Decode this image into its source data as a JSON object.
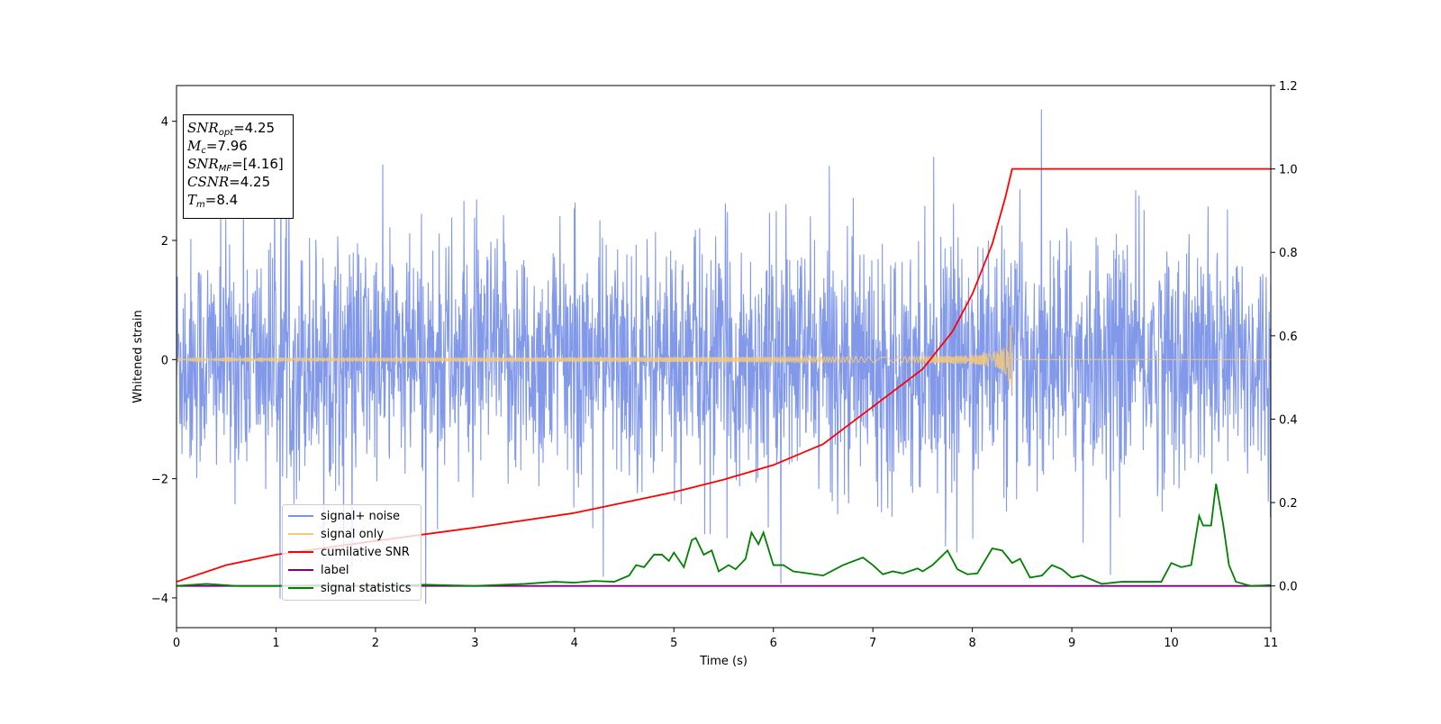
{
  "chart_data": {
    "type": "line",
    "xlabel": "Time (s)",
    "ylabel": "Whitened strain",
    "xlim": [
      0,
      11
    ],
    "ylim": [
      -4.5,
      4.6
    ],
    "y2lim": [
      -0.1,
      1.2
    ],
    "x_ticks": [
      0,
      1,
      2,
      3,
      4,
      5,
      6,
      7,
      8,
      9,
      10,
      11
    ],
    "y_ticks": [
      -4,
      -2,
      0,
      2,
      4
    ],
    "y2_ticks": [
      0.0,
      0.2,
      0.4,
      0.6,
      0.8,
      1.0,
      1.2
    ],
    "legend_position": "lower-left",
    "grid": false,
    "annotation": {
      "snr_opt": "4.25",
      "mc": "7.96",
      "snr_mf": "[4.16]",
      "csnr": "4.25",
      "tm": "8.4"
    },
    "series": [
      {
        "name": "signal+ noise",
        "color": "#7b94e8",
        "axis": "left",
        "description": "noise with std ~1, spikes up to about +/-4.2"
      },
      {
        "name": "signal only",
        "color": "#f5c97a",
        "axis": "left",
        "chirp_end": 8.4,
        "peak_amplitude": 0.7
      },
      {
        "name": "cumilative SNR",
        "color": "#ff0000",
        "axis": "right",
        "points": [
          [
            0,
            0.01
          ],
          [
            0.5,
            0.05
          ],
          [
            1,
            0.075
          ],
          [
            2,
            0.108
          ],
          [
            3,
            0.14
          ],
          [
            4,
            0.175
          ],
          [
            5,
            0.225
          ],
          [
            5.5,
            0.255
          ],
          [
            6,
            0.29
          ],
          [
            6.5,
            0.34
          ],
          [
            7,
            0.43
          ],
          [
            7.5,
            0.52
          ],
          [
            7.8,
            0.61
          ],
          [
            8.0,
            0.7
          ],
          [
            8.2,
            0.82
          ],
          [
            8.33,
            0.93
          ],
          [
            8.4,
            1.0
          ],
          [
            11,
            1.0
          ]
        ]
      },
      {
        "name": "label",
        "color": "#800080",
        "axis": "right",
        "points": [
          [
            0,
            0.0
          ],
          [
            11,
            0.0
          ]
        ]
      },
      {
        "name": "signal statistics",
        "color": "#008000",
        "axis": "right",
        "points": [
          [
            0,
            0.0
          ],
          [
            0.3,
            0.005
          ],
          [
            0.6,
            0.0
          ],
          [
            1,
            0.0
          ],
          [
            1.5,
            0.002
          ],
          [
            2,
            0.0
          ],
          [
            2.5,
            0.003
          ],
          [
            3,
            0.0
          ],
          [
            3.5,
            0.005
          ],
          [
            3.8,
            0.01
          ],
          [
            4.0,
            0.008
          ],
          [
            4.2,
            0.012
          ],
          [
            4.4,
            0.01
          ],
          [
            4.55,
            0.025
          ],
          [
            4.62,
            0.05
          ],
          [
            4.7,
            0.045
          ],
          [
            4.8,
            0.075
          ],
          [
            4.88,
            0.075
          ],
          [
            4.95,
            0.06
          ],
          [
            5.0,
            0.08
          ],
          [
            5.1,
            0.045
          ],
          [
            5.18,
            0.11
          ],
          [
            5.22,
            0.115
          ],
          [
            5.3,
            0.075
          ],
          [
            5.38,
            0.085
          ],
          [
            5.45,
            0.035
          ],
          [
            5.55,
            0.05
          ],
          [
            5.62,
            0.04
          ],
          [
            5.72,
            0.065
          ],
          [
            5.78,
            0.128
          ],
          [
            5.85,
            0.1
          ],
          [
            5.9,
            0.128
          ],
          [
            6.0,
            0.05
          ],
          [
            6.1,
            0.05
          ],
          [
            6.2,
            0.035
          ],
          [
            6.5,
            0.025
          ],
          [
            6.7,
            0.05
          ],
          [
            6.9,
            0.068
          ],
          [
            7.0,
            0.05
          ],
          [
            7.1,
            0.028
          ],
          [
            7.2,
            0.035
          ],
          [
            7.3,
            0.03
          ],
          [
            7.45,
            0.042
          ],
          [
            7.5,
            0.035
          ],
          [
            7.6,
            0.05
          ],
          [
            7.75,
            0.085
          ],
          [
            7.85,
            0.04
          ],
          [
            7.95,
            0.028
          ],
          [
            8.05,
            0.03
          ],
          [
            8.2,
            0.09
          ],
          [
            8.3,
            0.085
          ],
          [
            8.4,
            0.055
          ],
          [
            8.48,
            0.065
          ],
          [
            8.58,
            0.02
          ],
          [
            8.7,
            0.025
          ],
          [
            8.8,
            0.05
          ],
          [
            8.9,
            0.04
          ],
          [
            9.0,
            0.02
          ],
          [
            9.1,
            0.025
          ],
          [
            9.3,
            0.005
          ],
          [
            9.5,
            0.01
          ],
          [
            9.7,
            0.01
          ],
          [
            9.9,
            0.01
          ],
          [
            10.0,
            0.055
          ],
          [
            10.1,
            0.045
          ],
          [
            10.2,
            0.05
          ],
          [
            10.28,
            0.168
          ],
          [
            10.32,
            0.145
          ],
          [
            10.4,
            0.145
          ],
          [
            10.45,
            0.245
          ],
          [
            10.52,
            0.15
          ],
          [
            10.58,
            0.05
          ],
          [
            10.65,
            0.01
          ],
          [
            10.8,
            0.0
          ],
          [
            11,
            0.002
          ]
        ]
      }
    ]
  },
  "infobox": {
    "line1_sub": "opt",
    "line1_val": "=4.25",
    "line2_sub": "c",
    "line2_val": "=7.96",
    "line3_sub": "MF",
    "line3_val": "=[4.16]",
    "line4_val": "=4.25",
    "line5_sub": "m",
    "line5_val": "=8.4"
  },
  "legend": {
    "items": [
      {
        "label": "signal+ noise",
        "color": "#7b94e8"
      },
      {
        "label": "signal only",
        "color": "#f5c97a"
      },
      {
        "label": "cumilative SNR",
        "color": "#ff0000"
      },
      {
        "label": "label",
        "color": "#800080"
      },
      {
        "label": "signal statistics",
        "color": "#008000"
      }
    ]
  }
}
